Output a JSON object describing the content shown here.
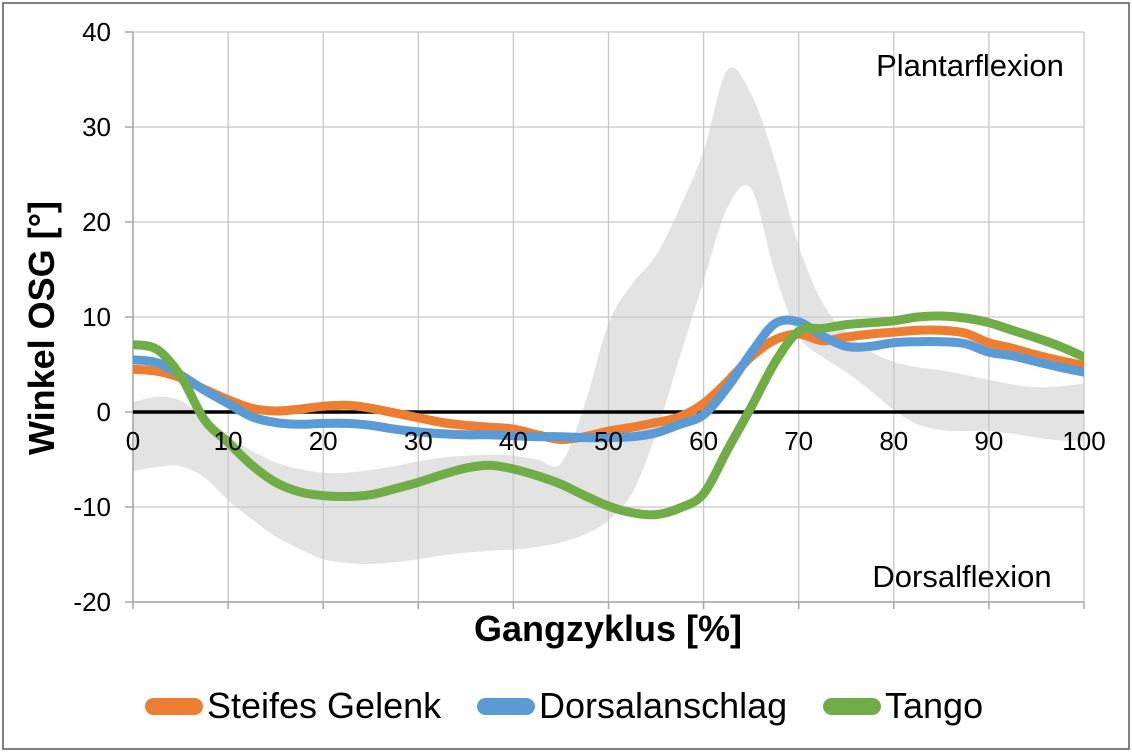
{
  "chart_data": {
    "type": "line",
    "title": "",
    "xlabel": "Gangzyklus [%]",
    "ylabel": "Winkel OSG [°]",
    "xlim": [
      0,
      100
    ],
    "ylim": [
      -20,
      40
    ],
    "x_ticks": [
      0,
      10,
      20,
      30,
      40,
      50,
      60,
      70,
      80,
      90,
      100
    ],
    "y_ticks": [
      40,
      30,
      20,
      10,
      0,
      -10,
      -20
    ],
    "grid": true,
    "legend_position": "bottom",
    "x": [
      0,
      2.5,
      5,
      7.5,
      10,
      12.5,
      15,
      17.5,
      20,
      22.5,
      25,
      27.5,
      30,
      32.5,
      35,
      37.5,
      40,
      42.5,
      45,
      47.5,
      50,
      52.5,
      55,
      57.5,
      60,
      62.5,
      65,
      67.5,
      70,
      72.5,
      75,
      77.5,
      80,
      82.5,
      85,
      87.5,
      90,
      92.5,
      95,
      97.5,
      100
    ],
    "series": [
      {
        "name": "Steifes Gelenk",
        "color": "#ED7D31",
        "values": [
          4.5,
          4.3,
          3.6,
          2.4,
          1.3,
          0.4,
          0.1,
          0.3,
          0.6,
          0.7,
          0.4,
          -0.1,
          -0.6,
          -1.1,
          -1.4,
          -1.6,
          -1.8,
          -2.4,
          -2.9,
          -2.6,
          -2.0,
          -1.6,
          -1.1,
          -0.5,
          0.9,
          3.2,
          5.8,
          7.6,
          8.2,
          7.5,
          7.9,
          8.2,
          8.4,
          8.6,
          8.6,
          8.3,
          7.3,
          6.7,
          6.0,
          5.4,
          4.9
        ]
      },
      {
        "name": "Dorsalanschlag",
        "color": "#5B9BD5",
        "values": [
          5.5,
          5.2,
          3.9,
          2.3,
          0.9,
          -0.5,
          -1.1,
          -1.3,
          -1.2,
          -1.2,
          -1.4,
          -1.8,
          -2.1,
          -2.3,
          -2.4,
          -2.4,
          -2.5,
          -2.6,
          -2.6,
          -2.7,
          -2.7,
          -2.6,
          -2.2,
          -1.3,
          -0.3,
          2.6,
          6.2,
          9.3,
          9.5,
          8.0,
          6.9,
          6.9,
          7.3,
          7.4,
          7.4,
          7.2,
          6.3,
          5.9,
          5.3,
          4.7,
          4.2
        ]
      },
      {
        "name": "Tango",
        "color": "#70AD47",
        "values": [
          7.1,
          6.6,
          3.8,
          -0.8,
          -3.2,
          -5.6,
          -7.4,
          -8.4,
          -8.8,
          -8.9,
          -8.7,
          -8.1,
          -7.4,
          -6.6,
          -5.9,
          -5.6,
          -6.0,
          -6.7,
          -7.6,
          -8.8,
          -9.9,
          -10.6,
          -10.8,
          -10.1,
          -8.6,
          -4.0,
          0.5,
          5.2,
          8.5,
          8.8,
          9.2,
          9.4,
          9.6,
          10.0,
          10.1,
          9.9,
          9.4,
          8.6,
          7.8,
          6.9,
          5.8
        ]
      }
    ],
    "band": {
      "color": "#E3E3E3",
      "upper": [
        1.0,
        1.6,
        1.2,
        -0.6,
        -2.5,
        -4.1,
        -5.3,
        -6.0,
        -6.4,
        -6.4,
        -6.1,
        -5.7,
        -5.2,
        -4.8,
        -4.6,
        -4.5,
        -4.6,
        -5.0,
        -5.4,
        0.8,
        9.3,
        13.5,
        16.5,
        21.5,
        27.5,
        36.0,
        33.5,
        26.5,
        17.5,
        11.5,
        8.4,
        6.4,
        5.3,
        4.7,
        4.4,
        3.9,
        3.4,
        2.9,
        2.6,
        2.7,
        3.0
      ],
      "lower": [
        -6.2,
        -5.8,
        -5.7,
        -6.9,
        -9.3,
        -11.3,
        -13.1,
        -14.4,
        -15.5,
        -15.9,
        -16.0,
        -15.8,
        -15.5,
        -15.1,
        -14.8,
        -14.6,
        -14.5,
        -14.2,
        -13.7,
        -12.9,
        -11.4,
        -8.5,
        -2.3,
        5.8,
        13.8,
        21.5,
        23.5,
        14.6,
        8.0,
        5.8,
        4.2,
        2.3,
        0.2,
        -1.3,
        -1.9,
        -2.0,
        -2.0,
        -2.3,
        -2.7,
        -3.0,
        -3.0
      ]
    },
    "annotations": [
      {
        "text": "Plantarflexion",
        "x": 88,
        "y": 36
      },
      {
        "text": "Dorsalflexion",
        "x": 87,
        "y": -17.4
      }
    ],
    "axis": {
      "zero_line_color": "#000000",
      "gridline_color": "#C8C8C8",
      "axis_color": "#A6A6A6",
      "line_width": 9,
      "zero_line_width": 3.6
    }
  }
}
